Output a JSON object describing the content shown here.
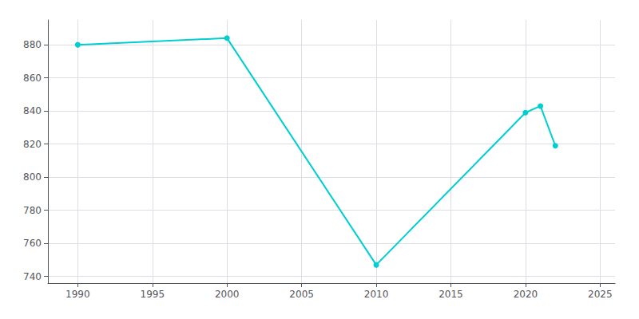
{
  "chart_data": {
    "type": "line",
    "x": [
      1990,
      2000,
      2010,
      2020,
      2021,
      2022
    ],
    "values": [
      880,
      884,
      747,
      839,
      843,
      819
    ],
    "color": "#00CED1",
    "marker": "circle",
    "xlim": [
      1988,
      2026
    ],
    "ylim": [
      736,
      895
    ],
    "xticks": [
      1990,
      1995,
      2000,
      2005,
      2010,
      2015,
      2020,
      2025
    ],
    "yticks": [
      740,
      760,
      780,
      800,
      820,
      840,
      860,
      880
    ],
    "grid": true
  }
}
